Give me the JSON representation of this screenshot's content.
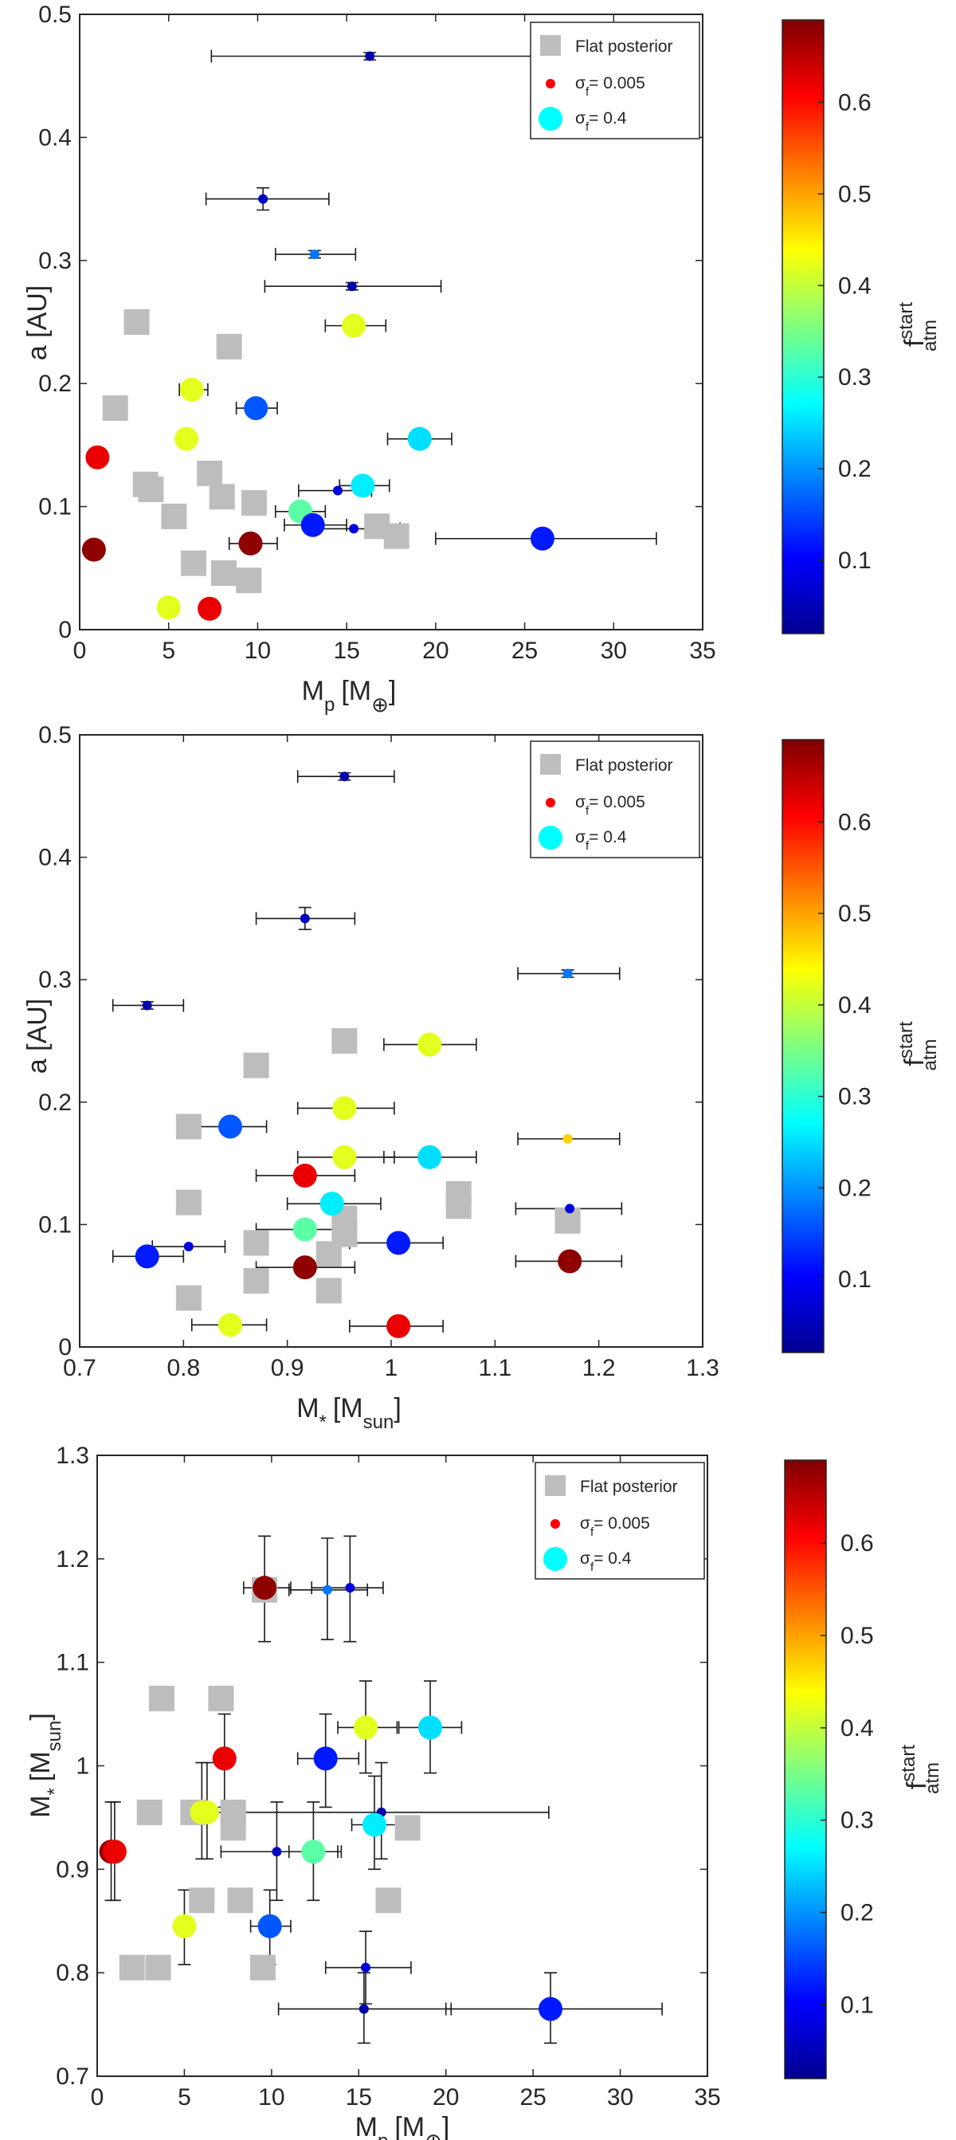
{
  "colormap": [
    "#00008f",
    "#0000ff",
    "#0080ff",
    "#00ffff",
    "#80ff80",
    "#ffff00",
    "#ff8000",
    "#ff0000",
    "#800000"
  ],
  "legend": {
    "flat": "Flat posterior",
    "small_sym": "σ",
    "small_sub": "f",
    "small_val": "= 0.005",
    "large_sym": "σ",
    "large_sub": "f",
    "large_val": "= 0.4"
  },
  "colorbar": {
    "range": [
      0.02,
      0.69
    ],
    "ticks": [
      "0.6",
      "0.5",
      "0.4",
      "0.3",
      "0.2",
      "0.1"
    ],
    "tick_values": [
      0.6,
      0.5,
      0.4,
      0.3,
      0.2,
      0.1
    ],
    "label_main": "f",
    "label_sup": "start",
    "label_sub": "atm"
  },
  "panel_labels": {
    "mp": {
      "main": "M",
      "sub": "p",
      "unit": "[M",
      "unit_sub": "⊕",
      "close": "]"
    },
    "a": {
      "main": "a [AU]"
    },
    "ms": {
      "main": "M",
      "sub": "*",
      "unit": "[M",
      "unit_sub": "sun",
      "close": "]"
    }
  },
  "chart_data": [
    {
      "type": "scatter",
      "title": "",
      "xlabel": "M_p [M_earth]",
      "ylabel": "a [AU]",
      "xlim": [
        0,
        35
      ],
      "ylim": [
        0,
        0.5
      ],
      "xticks": [
        "0",
        "5",
        "10",
        "15",
        "20",
        "25",
        "30",
        "35"
      ],
      "xtick_values": [
        0,
        5,
        10,
        15,
        20,
        25,
        30,
        35
      ],
      "yticks": [
        "0",
        "0.1",
        "0.2",
        "0.3",
        "0.4",
        "0.5"
      ],
      "ytick_values": [
        0,
        0.1,
        0.2,
        0.3,
        0.4,
        0.5
      ],
      "flat_points": [
        {
          "x": 3.2,
          "y": 0.25
        },
        {
          "x": 8.4,
          "y": 0.23
        },
        {
          "x": 2.0,
          "y": 0.18
        },
        {
          "x": 3.7,
          "y": 0.118
        },
        {
          "x": 4.0,
          "y": 0.114
        },
        {
          "x": 7.3,
          "y": 0.127
        },
        {
          "x": 8.0,
          "y": 0.108
        },
        {
          "x": 9.8,
          "y": 0.103
        },
        {
          "x": 5.3,
          "y": 0.092
        },
        {
          "x": 16.7,
          "y": 0.084
        },
        {
          "x": 17.8,
          "y": 0.076
        },
        {
          "x": 6.4,
          "y": 0.054
        },
        {
          "x": 8.1,
          "y": 0.046
        },
        {
          "x": 9.5,
          "y": 0.04
        }
      ],
      "points": [
        {
          "x": 16.3,
          "y": 0.466,
          "c": 0.04,
          "s": 0.005,
          "xerr": [
            7.4,
            25.9
          ],
          "yerr": 0.003
        },
        {
          "x": 10.3,
          "y": 0.35,
          "c": 0.06,
          "s": 0.005,
          "xerr": [
            7.1,
            14.0
          ],
          "yerr": 0.009
        },
        {
          "x": 13.2,
          "y": 0.305,
          "c": 0.18,
          "s": 0.005,
          "xerr": [
            11.0,
            15.5
          ],
          "yerr": 0.003
        },
        {
          "x": 15.3,
          "y": 0.279,
          "c": 0.04,
          "s": 0.005,
          "xerr": [
            10.4,
            20.3
          ],
          "yerr": 0.003
        },
        {
          "x": 15.4,
          "y": 0.247,
          "c": 0.42,
          "s": 0.4,
          "xerr": [
            13.8,
            17.2
          ]
        },
        {
          "x": 6.3,
          "y": 0.195,
          "c": 0.42,
          "s": 0.4,
          "xerr": [
            5.6,
            7.2
          ]
        },
        {
          "x": 9.9,
          "y": 0.18,
          "c": 0.16,
          "s": 0.4,
          "xerr": [
            8.8,
            11.1
          ]
        },
        {
          "x": 6.0,
          "y": 0.155,
          "c": 0.42,
          "s": 0.4
        },
        {
          "x": 19.1,
          "y": 0.155,
          "c": 0.25,
          "s": 0.4,
          "xerr": [
            17.3,
            20.9
          ]
        },
        {
          "x": 1.0,
          "y": 0.14,
          "c": 0.62,
          "s": 0.4
        },
        {
          "x": 15.9,
          "y": 0.117,
          "c": 0.26,
          "s": 0.4,
          "xerr": [
            14.6,
            17.4
          ]
        },
        {
          "x": 14.5,
          "y": 0.113,
          "c": 0.08,
          "s": 0.005,
          "xerr": [
            12.3,
            16.4
          ]
        },
        {
          "x": 12.4,
          "y": 0.096,
          "c": 0.33,
          "s": 0.4,
          "xerr": [
            11.0,
            13.8
          ]
        },
        {
          "x": 13.1,
          "y": 0.085,
          "c": 0.12,
          "s": 0.4,
          "xerr": [
            11.5,
            15.0
          ]
        },
        {
          "x": 15.4,
          "y": 0.082,
          "c": 0.08,
          "s": 0.005,
          "xerr": [
            13.1,
            18.0
          ]
        },
        {
          "x": 26.0,
          "y": 0.074,
          "c": 0.12,
          "s": 0.4,
          "xerr": [
            20.0,
            32.4
          ]
        },
        {
          "x": 9.6,
          "y": 0.07,
          "c": 0.68,
          "s": 0.4,
          "xerr": [
            8.4,
            11.1
          ]
        },
        {
          "x": 0.8,
          "y": 0.065,
          "c": 0.68,
          "s": 0.4
        },
        {
          "x": 5.0,
          "y": 0.018,
          "c": 0.42,
          "s": 0.4
        },
        {
          "x": 7.3,
          "y": 0.017,
          "c": 0.62,
          "s": 0.4
        }
      ]
    },
    {
      "type": "scatter",
      "title": "",
      "xlabel": "M_* [M_sun]",
      "ylabel": "a [AU]",
      "xlim": [
        0.7,
        1.3
      ],
      "ylim": [
        0,
        0.5
      ],
      "xticks": [
        "0.7",
        "0.8",
        "0.9",
        "1",
        "1.1",
        "1.2",
        "1.3"
      ],
      "xtick_values": [
        0.7,
        0.8,
        0.9,
        1.0,
        1.1,
        1.2,
        1.3
      ],
      "yticks": [
        "0",
        "0.1",
        "0.2",
        "0.3",
        "0.4",
        "0.5"
      ],
      "ytick_values": [
        0,
        0.1,
        0.2,
        0.3,
        0.4,
        0.5
      ],
      "flat_points": [
        {
          "x": 0.955,
          "y": 0.25
        },
        {
          "x": 0.87,
          "y": 0.23
        },
        {
          "x": 0.805,
          "y": 0.18
        },
        {
          "x": 0.805,
          "y": 0.118
        },
        {
          "x": 1.065,
          "y": 0.125
        },
        {
          "x": 1.065,
          "y": 0.115
        },
        {
          "x": 0.955,
          "y": 0.105
        },
        {
          "x": 0.955,
          "y": 0.092
        },
        {
          "x": 1.17,
          "y": 0.103
        },
        {
          "x": 0.87,
          "y": 0.085
        },
        {
          "x": 0.94,
          "y": 0.076
        },
        {
          "x": 0.87,
          "y": 0.054
        },
        {
          "x": 0.94,
          "y": 0.046
        },
        {
          "x": 0.805,
          "y": 0.04
        }
      ],
      "points": [
        {
          "x": 0.955,
          "y": 0.466,
          "c": 0.04,
          "s": 0.005,
          "xerr": [
            0.91,
            1.003
          ],
          "yerr": 0.003
        },
        {
          "x": 0.917,
          "y": 0.35,
          "c": 0.06,
          "s": 0.005,
          "xerr": [
            0.87,
            0.965
          ],
          "yerr": 0.009
        },
        {
          "x": 1.17,
          "y": 0.305,
          "c": 0.18,
          "s": 0.005,
          "xerr": [
            1.122,
            1.22
          ],
          "yerr": 0.003
        },
        {
          "x": 0.765,
          "y": 0.279,
          "c": 0.04,
          "s": 0.005,
          "xerr": [
            0.732,
            0.8
          ],
          "yerr": 0.003
        },
        {
          "x": 1.037,
          "y": 0.247,
          "c": 0.42,
          "s": 0.4,
          "xerr": [
            0.993,
            1.082
          ]
        },
        {
          "x": 0.955,
          "y": 0.195,
          "c": 0.42,
          "s": 0.4,
          "xerr": [
            0.91,
            1.003
          ]
        },
        {
          "x": 0.845,
          "y": 0.18,
          "c": 0.16,
          "s": 0.4,
          "xerr": [
            0.808,
            0.88
          ]
        },
        {
          "x": 1.17,
          "y": 0.17,
          "c": 0.47,
          "s": 0.005,
          "xerr": [
            1.122,
            1.22
          ]
        },
        {
          "x": 0.955,
          "y": 0.155,
          "c": 0.42,
          "s": 0.4,
          "xerr": [
            0.91,
            1.003
          ]
        },
        {
          "x": 1.037,
          "y": 0.155,
          "c": 0.25,
          "s": 0.4,
          "xerr": [
            0.993,
            1.082
          ]
        },
        {
          "x": 0.917,
          "y": 0.14,
          "c": 0.62,
          "s": 0.4,
          "xerr": [
            0.87,
            0.965
          ]
        },
        {
          "x": 0.943,
          "y": 0.117,
          "c": 0.26,
          "s": 0.4,
          "xerr": [
            0.9,
            0.99
          ]
        },
        {
          "x": 1.172,
          "y": 0.113,
          "c": 0.08,
          "s": 0.005,
          "xerr": [
            1.12,
            1.222
          ]
        },
        {
          "x": 0.917,
          "y": 0.096,
          "c": 0.33,
          "s": 0.4,
          "xerr": [
            0.87,
            0.965
          ]
        },
        {
          "x": 1.007,
          "y": 0.085,
          "c": 0.12,
          "s": 0.4,
          "xerr": [
            0.96,
            1.05
          ]
        },
        {
          "x": 0.805,
          "y": 0.082,
          "c": 0.08,
          "s": 0.005,
          "xerr": [
            0.77,
            0.84
          ]
        },
        {
          "x": 0.765,
          "y": 0.074,
          "c": 0.12,
          "s": 0.4,
          "xerr": [
            0.732,
            0.8
          ]
        },
        {
          "x": 1.172,
          "y": 0.07,
          "c": 0.68,
          "s": 0.4,
          "xerr": [
            1.12,
            1.222
          ]
        },
        {
          "x": 0.917,
          "y": 0.065,
          "c": 0.68,
          "s": 0.4,
          "xerr": [
            0.87,
            0.965
          ]
        },
        {
          "x": 0.845,
          "y": 0.018,
          "c": 0.42,
          "s": 0.4,
          "xerr": [
            0.808,
            0.88
          ]
        },
        {
          "x": 1.007,
          "y": 0.017,
          "c": 0.62,
          "s": 0.4,
          "xerr": [
            0.96,
            1.05
          ]
        }
      ]
    },
    {
      "type": "scatter",
      "title": "",
      "xlabel": "M_p [M_earth]",
      "ylabel": "M_* [M_sun]",
      "xlim": [
        0,
        35
      ],
      "ylim": [
        0.7,
        1.3
      ],
      "xticks": [
        "0",
        "5",
        "10",
        "15",
        "20",
        "25",
        "30",
        "35"
      ],
      "xtick_values": [
        0,
        5,
        10,
        15,
        20,
        25,
        30,
        35
      ],
      "yticks": [
        "0.7",
        "0.8",
        "0.9",
        "1",
        "1.1",
        "1.2",
        "1.3"
      ],
      "ytick_values": [
        0.7,
        0.8,
        0.9,
        1.0,
        1.1,
        1.2,
        1.3
      ],
      "flat_points": [
        {
          "x": 3.7,
          "y": 1.065
        },
        {
          "x": 7.1,
          "y": 1.065
        },
        {
          "x": 3.0,
          "y": 0.955
        },
        {
          "x": 5.5,
          "y": 0.955
        },
        {
          "x": 7.8,
          "y": 0.955
        },
        {
          "x": 7.8,
          "y": 0.94
        },
        {
          "x": 17.8,
          "y": 0.94
        },
        {
          "x": 6.0,
          "y": 0.87
        },
        {
          "x": 8.2,
          "y": 0.87
        },
        {
          "x": 16.7,
          "y": 0.87
        },
        {
          "x": 2.0,
          "y": 0.805
        },
        {
          "x": 3.5,
          "y": 0.805
        },
        {
          "x": 9.5,
          "y": 0.805
        },
        {
          "x": 9.6,
          "y": 1.17
        }
      ],
      "points": [
        {
          "x": 9.6,
          "y": 1.172,
          "c": 0.68,
          "s": 0.4,
          "xerr": [
            8.4,
            11.1
          ],
          "yerr": [
            1.12,
            1.222
          ]
        },
        {
          "x": 13.2,
          "y": 1.17,
          "c": 0.18,
          "s": 0.005,
          "xerr": [
            11.0,
            15.5
          ],
          "yerr": [
            1.122,
            1.22
          ]
        },
        {
          "x": 14.5,
          "y": 1.172,
          "c": 0.08,
          "s": 0.005,
          "xerr": [
            12.3,
            16.4
          ],
          "yerr": [
            1.12,
            1.222
          ]
        },
        {
          "x": 7.3,
          "y": 1.007,
          "c": 0.62,
          "s": 0.4,
          "yerr": [
            0.96,
            1.05
          ]
        },
        {
          "x": 13.1,
          "y": 1.007,
          "c": 0.12,
          "s": 0.4,
          "xerr": [
            11.5,
            15.0
          ],
          "yerr": [
            0.96,
            1.05
          ]
        },
        {
          "x": 15.4,
          "y": 1.037,
          "c": 0.42,
          "s": 0.4,
          "xerr": [
            13.8,
            17.2
          ],
          "yerr": [
            0.993,
            1.082
          ]
        },
        {
          "x": 19.1,
          "y": 1.037,
          "c": 0.25,
          "s": 0.4,
          "xerr": [
            17.3,
            20.9
          ],
          "yerr": [
            0.993,
            1.082
          ]
        },
        {
          "x": 6.0,
          "y": 0.955,
          "c": 0.42,
          "s": 0.4,
          "yerr": [
            0.91,
            1.003
          ]
        },
        {
          "x": 6.3,
          "y": 0.955,
          "c": 0.42,
          "s": 0.4,
          "xerr": [
            5.6,
            7.2
          ],
          "yerr": [
            0.91,
            1.003
          ]
        },
        {
          "x": 16.3,
          "y": 0.955,
          "c": 0.04,
          "s": 0.005,
          "xerr": [
            7.4,
            25.9
          ],
          "yerr": [
            0.91,
            1.003
          ]
        },
        {
          "x": 15.9,
          "y": 0.943,
          "c": 0.26,
          "s": 0.4,
          "xerr": [
            14.6,
            17.4
          ],
          "yerr": [
            0.9,
            0.99
          ]
        },
        {
          "x": 0.8,
          "y": 0.917,
          "c": 0.68,
          "s": 0.4,
          "yerr": [
            0.87,
            0.965
          ]
        },
        {
          "x": 1.0,
          "y": 0.917,
          "c": 0.62,
          "s": 0.4,
          "yerr": [
            0.87,
            0.965
          ]
        },
        {
          "x": 10.3,
          "y": 0.917,
          "c": 0.06,
          "s": 0.005,
          "xerr": [
            7.1,
            14.0
          ],
          "yerr": [
            0.87,
            0.965
          ]
        },
        {
          "x": 12.4,
          "y": 0.917,
          "c": 0.33,
          "s": 0.4,
          "xerr": [
            11.0,
            13.8
          ],
          "yerr": [
            0.87,
            0.965
          ]
        },
        {
          "x": 5.0,
          "y": 0.845,
          "c": 0.42,
          "s": 0.4,
          "yerr": [
            0.808,
            0.88
          ]
        },
        {
          "x": 9.9,
          "y": 0.845,
          "c": 0.16,
          "s": 0.4,
          "xerr": [
            8.8,
            11.1
          ],
          "yerr": [
            0.808,
            0.88
          ]
        },
        {
          "x": 15.4,
          "y": 0.805,
          "c": 0.08,
          "s": 0.005,
          "xerr": [
            13.1,
            18.0
          ],
          "yerr": [
            0.77,
            0.84
          ]
        },
        {
          "x": 15.3,
          "y": 0.765,
          "c": 0.04,
          "s": 0.005,
          "xerr": [
            10.4,
            20.3
          ],
          "yerr": [
            0.732,
            0.8
          ]
        },
        {
          "x": 26.0,
          "y": 0.765,
          "c": 0.12,
          "s": 0.4,
          "xerr": [
            20.0,
            32.4
          ],
          "yerr": [
            0.732,
            0.8
          ]
        }
      ]
    }
  ]
}
